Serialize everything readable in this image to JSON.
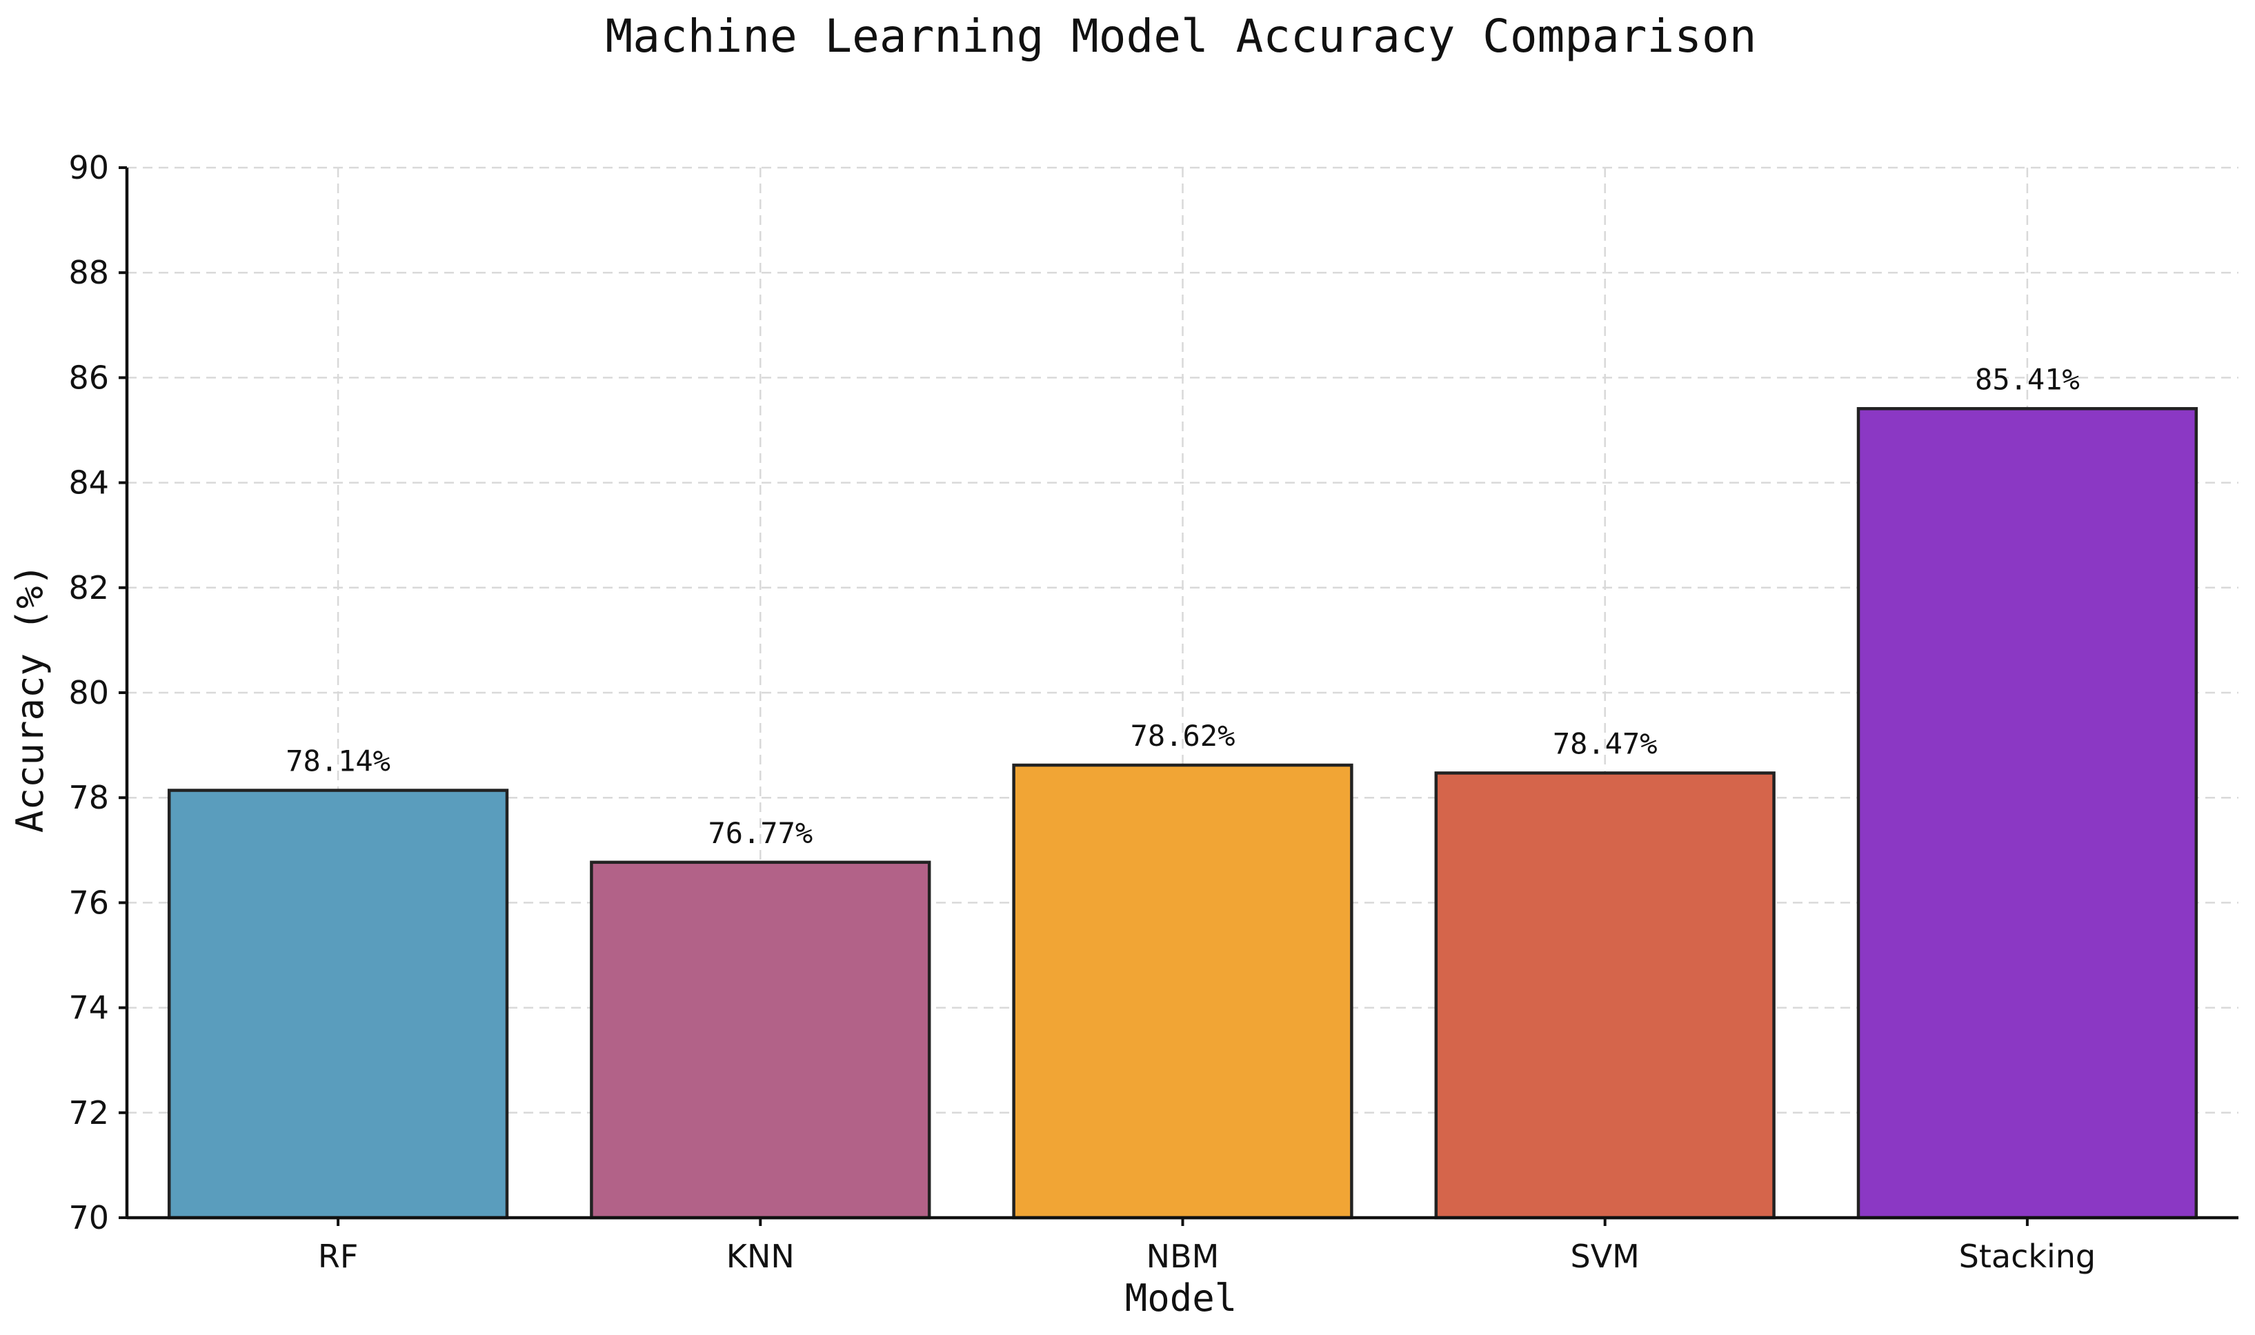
{
  "chart_data": {
    "type": "bar",
    "title": "Machine Learning Model Accuracy Comparison",
    "xlabel": "Model",
    "ylabel": "Accuracy (%)",
    "categories": [
      "RF",
      "KNN",
      "NBM",
      "SVM",
      "Stacking"
    ],
    "values": [
      78.14,
      76.77,
      78.62,
      78.47,
      85.41
    ],
    "value_labels": [
      "78.14%",
      "76.77%",
      "78.62%",
      "78.47%",
      "85.41%"
    ],
    "bar_colors": [
      "#5a9dbd",
      "#b26288",
      "#f1a535",
      "#d5654b",
      "#8b38c4"
    ],
    "ylim": [
      70,
      90
    ],
    "yticks": [
      70,
      72,
      74,
      76,
      78,
      80,
      82,
      84,
      86,
      88,
      90
    ],
    "ytick_labels": [
      "70",
      "72",
      "74",
      "76",
      "78",
      "80",
      "82",
      "84",
      "86",
      "88",
      "90"
    ],
    "grid": true,
    "grid_style": "dashed",
    "legend": "none"
  }
}
